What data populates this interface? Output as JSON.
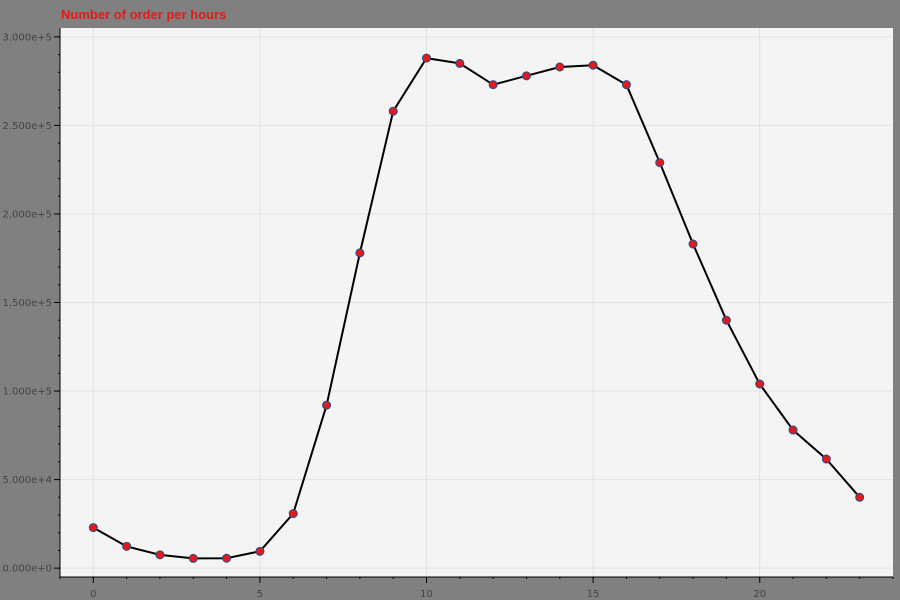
{
  "chart_data": {
    "type": "line",
    "title": "Number of order per hours",
    "xlabel": "",
    "ylabel": "",
    "xlim": [
      -1,
      24
    ],
    "ylim": [
      -5000,
      305000
    ],
    "x_ticks": [
      0,
      5,
      10,
      15,
      20
    ],
    "x_tick_labels": [
      "0",
      "5",
      "10",
      "15",
      "20"
    ],
    "y_ticks": [
      0,
      50000,
      100000,
      150000,
      200000,
      250000,
      300000
    ],
    "y_tick_labels": [
      "0.000e+0",
      "5.000e+4",
      "1.000e+5",
      "1.500e+5",
      "2.000e+5",
      "2.500e+5",
      "3.000e+5"
    ],
    "grid": true,
    "series": [
      {
        "x": [
          0,
          1,
          2,
          3,
          4,
          5,
          6,
          7,
          8,
          9,
          10,
          11,
          12,
          13,
          14,
          15,
          16,
          17,
          18,
          19,
          20,
          21,
          22,
          23
        ],
        "values": [
          22900,
          12300,
          7500,
          5500,
          5600,
          9500,
          30800,
          92000,
          178000,
          258000,
          288000,
          285000,
          273000,
          278000,
          283000,
          284000,
          273000,
          229000,
          183000,
          140000,
          104000,
          78000,
          61600,
          40000
        ]
      }
    ],
    "colors": {
      "background": "#808080",
      "plot_area": "#f4f4f4",
      "grid": "#e2e2e2",
      "line": "#000000",
      "marker_fill": "#e31a1c",
      "marker_stroke": "#1f4e8c",
      "title": "#e31a1c"
    }
  }
}
